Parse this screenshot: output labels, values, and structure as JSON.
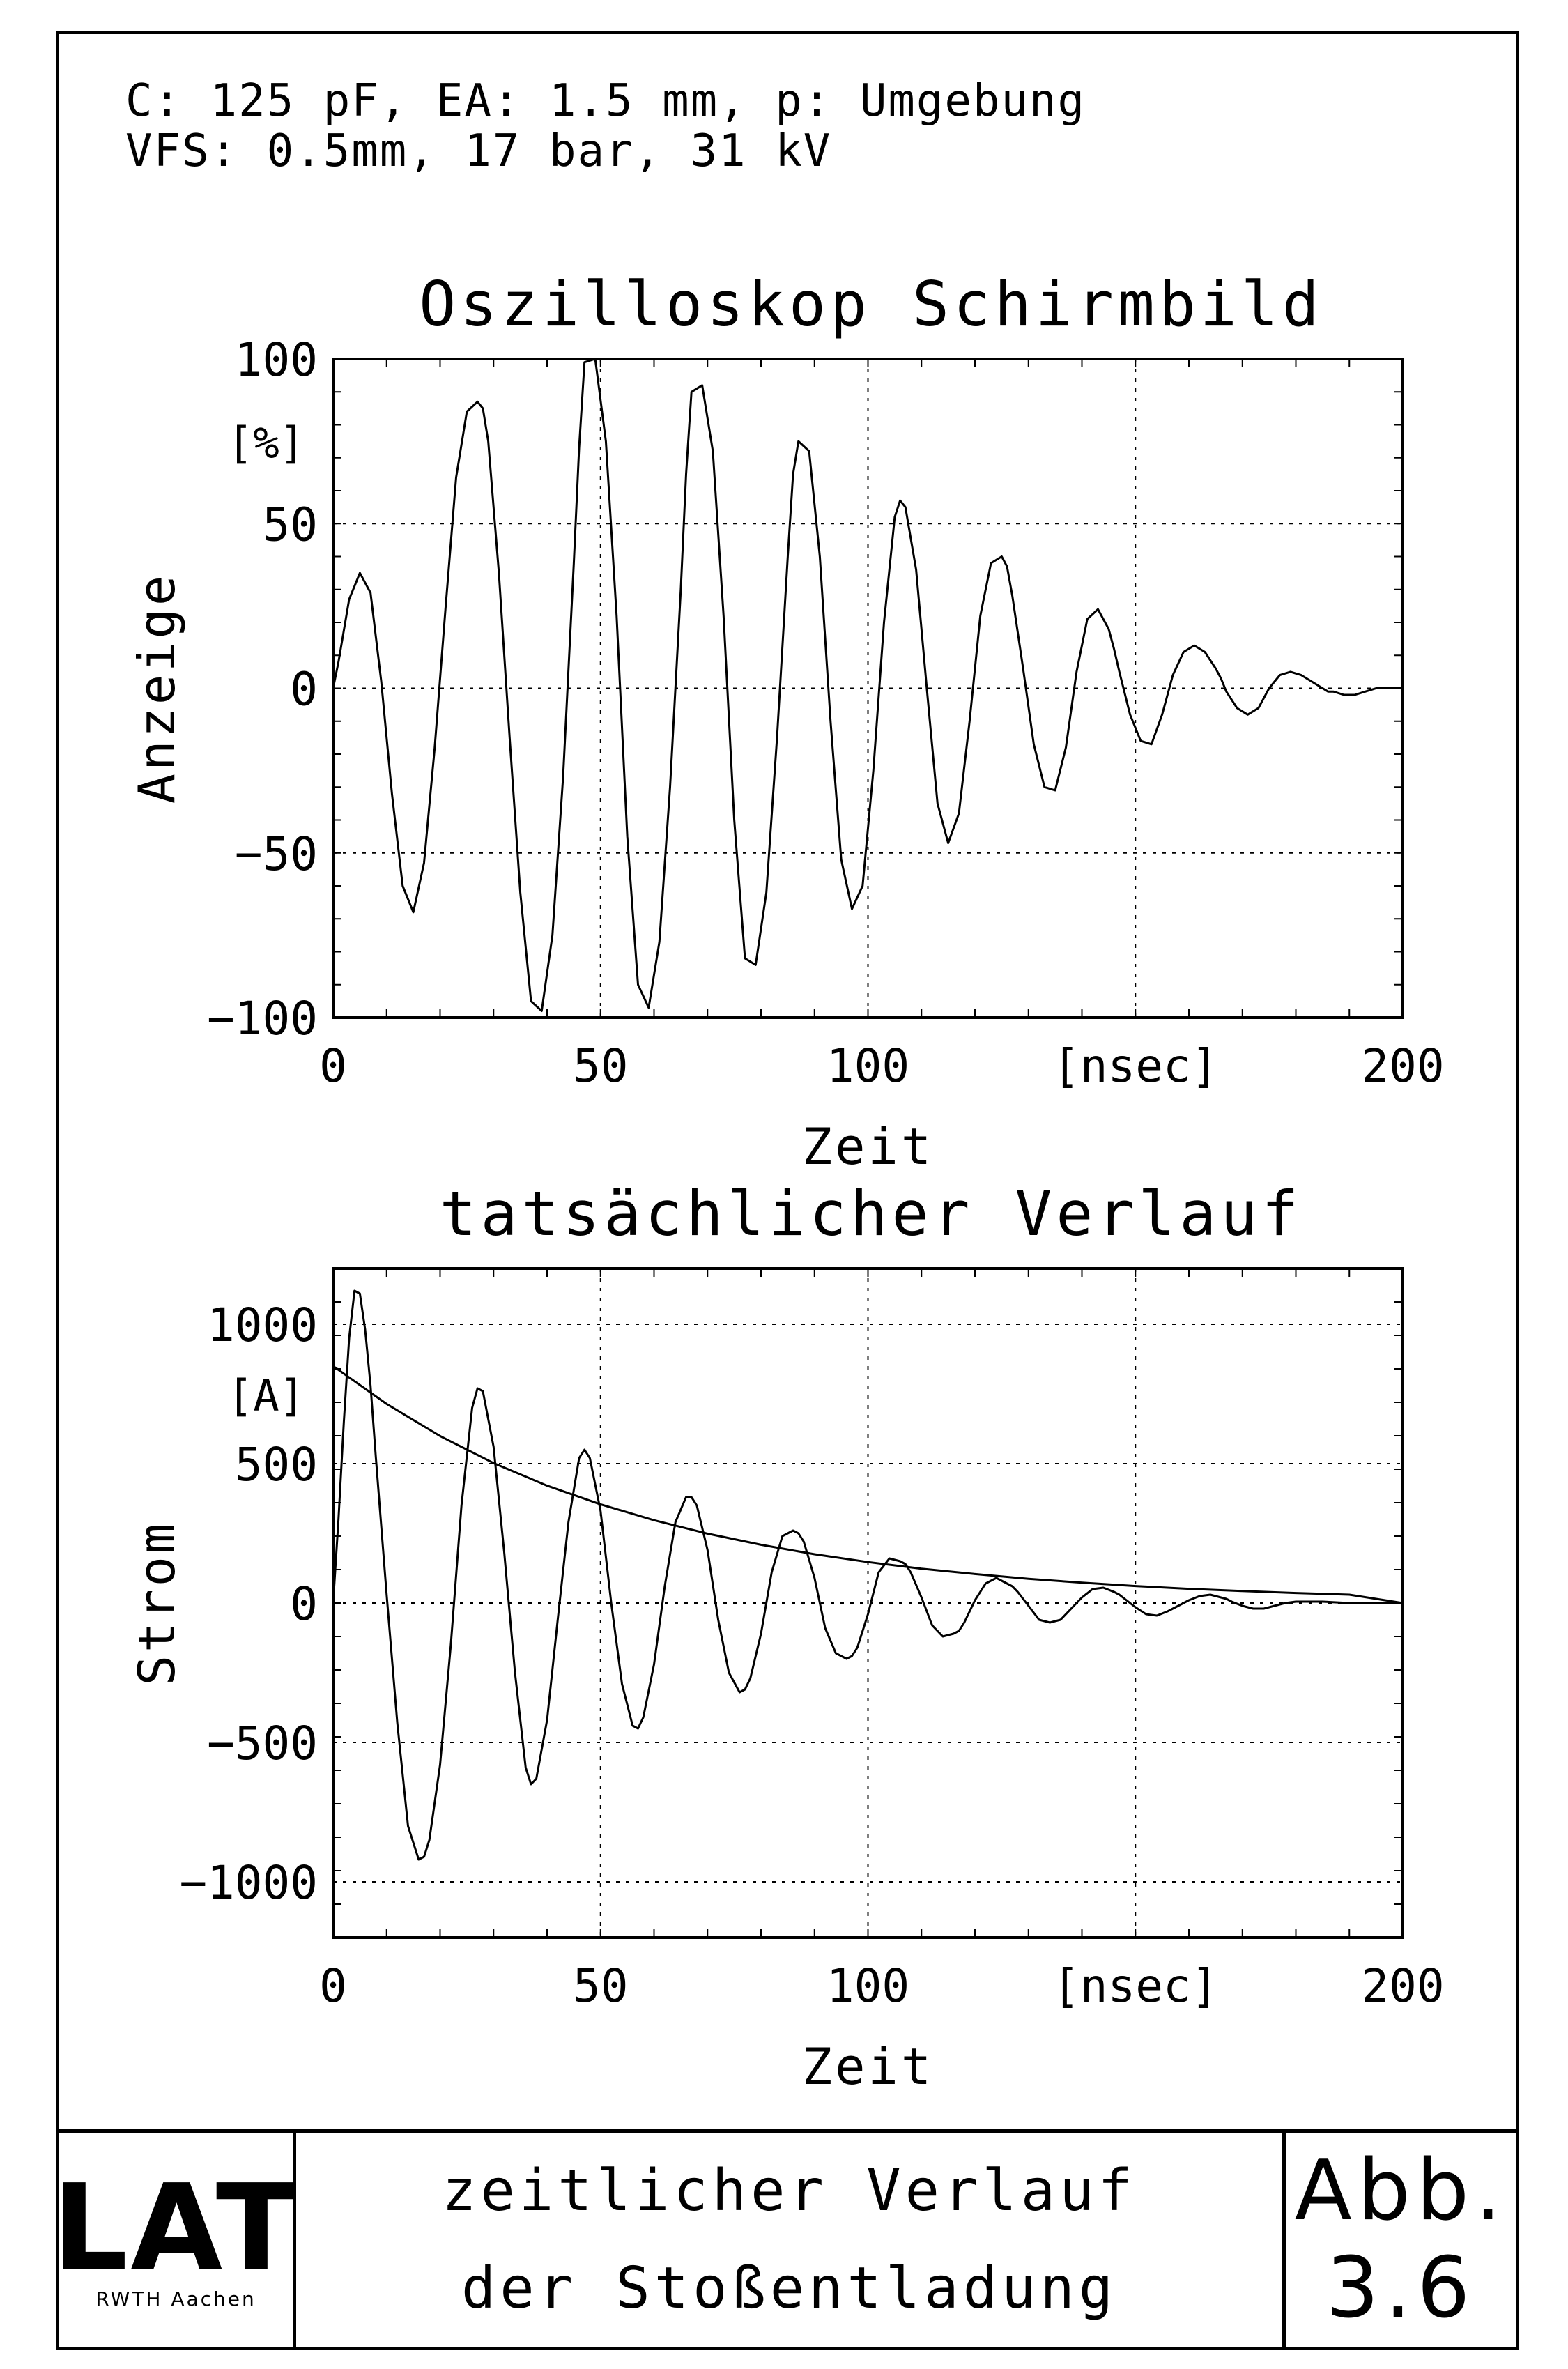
{
  "header": {
    "line1": "C: 125 pF, EA: 1.5 mm, p: Umgebung",
    "line2": "VFS: 0.5mm, 17 bar, 31 kV"
  },
  "footer": {
    "logo_text": "LAT",
    "logo_subtitle": "RWTH  Aachen",
    "caption_line1": "zeitlicher Verlauf",
    "caption_line2": "der Stoßentladung",
    "figure_label": "Abb.",
    "figure_number": "3.6"
  },
  "chart_data": [
    {
      "type": "line",
      "title": "Oszilloskop Schirmbild",
      "xlabel": "Zeit",
      "xunit": "[nsec]",
      "ylabel": "Anzeige",
      "yunit": "[%]",
      "xlim": [
        0,
        200
      ],
      "ylim": [
        -100,
        100
      ],
      "xticks": [
        0,
        50,
        100,
        150,
        200
      ],
      "xtick_labels": [
        "0",
        "50",
        "100",
        "[nsec]",
        "200"
      ],
      "yticks": [
        -100,
        -50,
        0,
        50,
        100
      ],
      "ytick_labels": [
        "−100",
        "−50",
        "0",
        "50",
        "100"
      ],
      "grid": true,
      "series": [
        {
          "x": [
            0,
            1,
            3,
            5,
            7,
            9,
            11,
            13,
            15,
            17,
            19,
            21,
            23,
            25,
            27,
            28,
            29,
            31,
            33,
            35,
            37,
            39,
            41,
            43,
            45,
            46,
            47,
            49,
            51,
            53,
            55,
            57,
            59,
            61,
            63,
            65,
            66,
            67,
            69,
            71,
            73,
            75,
            77,
            79,
            81,
            83,
            85,
            86,
            87,
            89,
            91,
            93,
            95,
            97,
            99,
            101,
            103,
            105,
            106,
            107,
            109,
            111,
            113,
            115,
            117,
            119,
            121,
            123,
            125,
            126,
            127,
            129,
            131,
            133,
            135,
            137,
            139,
            141,
            143,
            145,
            146,
            147,
            149,
            151,
            153,
            155,
            157,
            159,
            161,
            163,
            165,
            166,
            167,
            169,
            171,
            173,
            175,
            177,
            179,
            181,
            183,
            185,
            186,
            187,
            189,
            191,
            193,
            195,
            197,
            199,
            200
          ],
          "y": [
            0,
            8,
            27,
            35,
            29,
            2,
            -32,
            -60,
            -68,
            -53,
            -18,
            24,
            64,
            84,
            87,
            85,
            75,
            35,
            -15,
            -62,
            -95,
            -98,
            -75,
            -27,
            38,
            73,
            99,
            100,
            75,
            22,
            -45,
            -90,
            -97,
            -77,
            -30,
            30,
            65,
            90,
            92,
            72,
            22,
            -40,
            -82,
            -84,
            -62,
            -15,
            40,
            65,
            75,
            72,
            40,
            -10,
            -52,
            -67,
            -60,
            -25,
            20,
            52,
            57,
            55,
            36,
            0,
            -35,
            -47,
            -38,
            -10,
            22,
            38,
            40,
            37,
            28,
            6,
            -17,
            -30,
            -31,
            -18,
            5,
            21,
            24,
            18,
            12,
            5,
            -8,
            -16,
            -17,
            -8,
            4,
            11,
            13,
            11,
            6,
            3,
            -1,
            -6,
            -8,
            -6,
            0,
            4,
            5,
            4,
            2,
            0,
            -1,
            -1,
            -2,
            -2,
            -1,
            0,
            0,
            0,
            0
          ]
        }
      ]
    },
    {
      "type": "line",
      "title": "tatsächlicher Verlauf",
      "xlabel": "Zeit",
      "xunit": "[nsec]",
      "ylabel": "Strom",
      "yunit": "[A]",
      "xlim": [
        0,
        200
      ],
      "ylim": [
        -1200,
        1200
      ],
      "xticks": [
        0,
        50,
        100,
        150,
        200
      ],
      "xtick_labels": [
        "0",
        "50",
        "100",
        "[nsec]",
        "200"
      ],
      "yticks": [
        -1000,
        -500,
        0,
        500,
        1000
      ],
      "ytick_labels": [
        "−1000",
        "−500",
        "0",
        "500",
        "1000"
      ],
      "grid": true,
      "series": [
        {
          "x": [
            0,
            1,
            2,
            3,
            4,
            5,
            6,
            7,
            8,
            10,
            12,
            14,
            16,
            17,
            18,
            20,
            22,
            24,
            26,
            27,
            28,
            30,
            32,
            34,
            36,
            37,
            38,
            40,
            42,
            44,
            46,
            47,
            48,
            50,
            52,
            54,
            56,
            57,
            58,
            60,
            62,
            64,
            66,
            67,
            68,
            70,
            72,
            74,
            76,
            77,
            78,
            80,
            82,
            84,
            86,
            87,
            88,
            90,
            92,
            94,
            96,
            97,
            98,
            100,
            102,
            104,
            106,
            107,
            108,
            110,
            112,
            114,
            116,
            117,
            118,
            120,
            122,
            124,
            126,
            127,
            128,
            130,
            132,
            134,
            136,
            137,
            138,
            140,
            142,
            144,
            146,
            147,
            148,
            150,
            152,
            154,
            156,
            157,
            158,
            160,
            162,
            164,
            166,
            167,
            168,
            170,
            172,
            174,
            176,
            177,
            178,
            180,
            185,
            190,
            195,
            200
          ],
          "y": [
            0,
            300,
            650,
            950,
            1120,
            1110,
            980,
            780,
            520,
            30,
            -430,
            -800,
            -920,
            -910,
            -850,
            -580,
            -150,
            350,
            700,
            770,
            760,
            560,
            180,
            -250,
            -590,
            -650,
            -630,
            -420,
            -60,
            290,
            520,
            550,
            520,
            330,
            0,
            -290,
            -440,
            -450,
            -410,
            -220,
            60,
            290,
            380,
            380,
            350,
            190,
            -60,
            -250,
            -320,
            -310,
            -270,
            -110,
            110,
            240,
            260,
            250,
            220,
            90,
            -90,
            -180,
            -200,
            -190,
            -160,
            -40,
            110,
            160,
            150,
            140,
            110,
            20,
            -80,
            -120,
            -110,
            -100,
            -70,
            10,
            70,
            90,
            70,
            60,
            40,
            -10,
            -60,
            -70,
            -60,
            -40,
            -20,
            20,
            50,
            55,
            40,
            30,
            15,
            -15,
            -40,
            -45,
            -30,
            -20,
            -10,
            10,
            25,
            30,
            20,
            15,
            5,
            -10,
            -20,
            -20,
            -10,
            -5,
            0,
            5,
            5,
            0,
            0,
            0
          ]
        },
        {
          "x": [
            0,
            10,
            20,
            30,
            40,
            50,
            60,
            70,
            80,
            90,
            100,
            110,
            120,
            130,
            140,
            150,
            160,
            170,
            180,
            190,
            200
          ],
          "y": [
            850,
            714,
            599,
            502,
            421,
            354,
            297,
            249,
            209,
            175,
            147,
            123,
            104,
            87,
            73,
            61,
            51,
            43,
            36,
            30,
            0
          ]
        }
      ]
    }
  ]
}
